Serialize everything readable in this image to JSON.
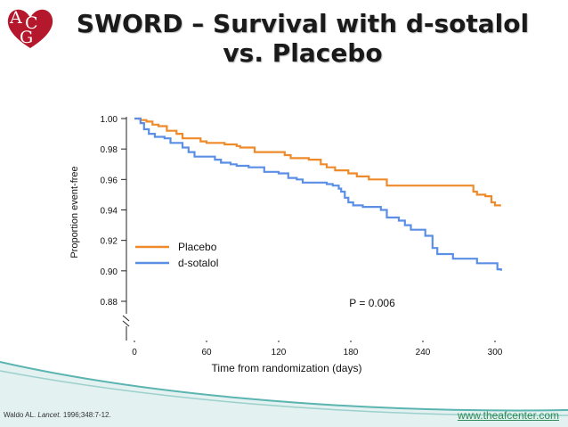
{
  "slide": {
    "title_line1": "SWORD – Survival with d-sotalol",
    "title_line2": "vs. Placebo",
    "logo_letters": "ACG",
    "citation_authors": "Waldo AL.",
    "citation_journal": "Lancet.",
    "citation_detail": "1996;348:7-12.",
    "url": "www.theafcenter.com",
    "colors": {
      "logo_red": "#b5172c",
      "accent_teal": "#5ab4b0",
      "url_green": "#2e8b57"
    }
  },
  "chart_data": {
    "type": "line",
    "xlabel": "Time from randomization (days)",
    "ylabel": "Proportion event-free",
    "xlim": [
      0,
      300
    ],
    "ylim": [
      0.88,
      1.0
    ],
    "axis_break": true,
    "x_ticks": [
      0,
      60,
      120,
      180,
      240,
      300
    ],
    "y_ticks": [
      1.0,
      0.98,
      0.96,
      0.94,
      0.92,
      0.9,
      0.88
    ],
    "x_tick_labels": [
      "0",
      "60",
      "120",
      "180",
      "240",
      "300"
    ],
    "y_tick_labels": [
      "1.00",
      "0.98",
      "0.96",
      "0.94",
      "0.92",
      "0.90",
      "0.88"
    ],
    "legend_position": "lower-left",
    "annotation": "P = 0.006",
    "series": [
      {
        "name": "Placebo",
        "color": "#ef8a2a",
        "points": [
          [
            0,
            1.0
          ],
          [
            5,
            0.999
          ],
          [
            10,
            0.998
          ],
          [
            15,
            0.996
          ],
          [
            20,
            0.995
          ],
          [
            27,
            0.992
          ],
          [
            35,
            0.99
          ],
          [
            40,
            0.987
          ],
          [
            55,
            0.985
          ],
          [
            60,
            0.984
          ],
          [
            75,
            0.983
          ],
          [
            85,
            0.982
          ],
          [
            88,
            0.981
          ],
          [
            100,
            0.978
          ],
          [
            125,
            0.976
          ],
          [
            130,
            0.974
          ],
          [
            145,
            0.973
          ],
          [
            155,
            0.97
          ],
          [
            160,
            0.968
          ],
          [
            167,
            0.966
          ],
          [
            178,
            0.964
          ],
          [
            185,
            0.962
          ],
          [
            195,
            0.96
          ],
          [
            210,
            0.956
          ],
          [
            280,
            0.956
          ],
          [
            282,
            0.952
          ],
          [
            285,
            0.95
          ],
          [
            292,
            0.949
          ],
          [
            297,
            0.945
          ],
          [
            300,
            0.943
          ],
          [
            305,
            0.943
          ]
        ]
      },
      {
        "name": "d-sotalol",
        "color": "#5b8fe6",
        "points": [
          [
            0,
            1.0
          ],
          [
            5,
            0.997
          ],
          [
            8,
            0.993
          ],
          [
            12,
            0.99
          ],
          [
            17,
            0.988
          ],
          [
            25,
            0.987
          ],
          [
            30,
            0.984
          ],
          [
            40,
            0.981
          ],
          [
            45,
            0.978
          ],
          [
            50,
            0.975
          ],
          [
            62,
            0.975
          ],
          [
            67,
            0.973
          ],
          [
            72,
            0.971
          ],
          [
            80,
            0.97
          ],
          [
            85,
            0.969
          ],
          [
            95,
            0.968
          ],
          [
            108,
            0.965
          ],
          [
            120,
            0.964
          ],
          [
            128,
            0.961
          ],
          [
            135,
            0.96
          ],
          [
            140,
            0.958
          ],
          [
            160,
            0.957
          ],
          [
            165,
            0.956
          ],
          [
            170,
            0.954
          ],
          [
            172,
            0.952
          ],
          [
            175,
            0.948
          ],
          [
            178,
            0.945
          ],
          [
            182,
            0.943
          ],
          [
            190,
            0.942
          ],
          [
            205,
            0.94
          ],
          [
            210,
            0.935
          ],
          [
            220,
            0.933
          ],
          [
            225,
            0.93
          ],
          [
            230,
            0.927
          ],
          [
            242,
            0.923
          ],
          [
            248,
            0.915
          ],
          [
            252,
            0.911
          ],
          [
            260,
            0.911
          ],
          [
            265,
            0.908
          ],
          [
            275,
            0.908
          ],
          [
            285,
            0.905
          ],
          [
            297,
            0.905
          ],
          [
            302,
            0.901
          ],
          [
            305,
            0.9
          ]
        ]
      }
    ]
  }
}
